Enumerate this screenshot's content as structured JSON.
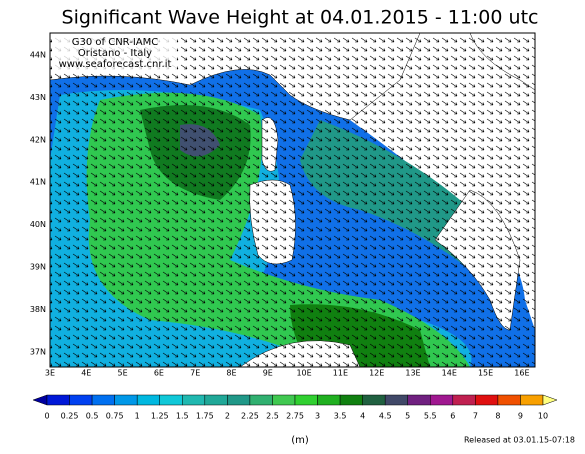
{
  "header": {
    "title": "Significant Wave Height at 04.01.2015 - 11:00 utc"
  },
  "credits": [
    "G30 of CNR-IAMC",
    "Oristano - Italy",
    "www.seaforecast.cnr.it"
  ],
  "lat_labels": [
    "44N",
    "43N",
    "42N",
    "41N",
    "40N",
    "39N",
    "38N",
    "37N"
  ],
  "lon_labels": [
    "3E",
    "4E",
    "5E",
    "6E",
    "7E",
    "8E",
    "9E",
    "10E",
    "11E",
    "12E",
    "13E",
    "14E",
    "15E",
    "16E"
  ],
  "legend": {
    "levels": [
      0,
      0.25,
      0.5,
      0.75,
      1,
      1.25,
      1.5,
      1.75,
      2,
      2.25,
      2.5,
      2.75,
      3,
      3.5,
      4,
      4.5,
      5,
      5.5,
      6,
      7,
      8,
      9,
      10
    ],
    "colors": [
      "#0000a0",
      "#0018d8",
      "#0040f0",
      "#0070f0",
      "#0098e8",
      "#00b8e0",
      "#10c8d8",
      "#20b8b0",
      "#20a898",
      "#209888",
      "#30b070",
      "#40c850",
      "#30d030",
      "#20b020",
      "#108010",
      "#206040",
      "#404868",
      "#702080",
      "#a01890",
      "#c02050",
      "#e01010",
      "#f05000",
      "#f8a000",
      "#ffff80"
    ],
    "unit": "(m)"
  },
  "footer": {
    "release": "Released at 03.01.15-07:18"
  }
}
